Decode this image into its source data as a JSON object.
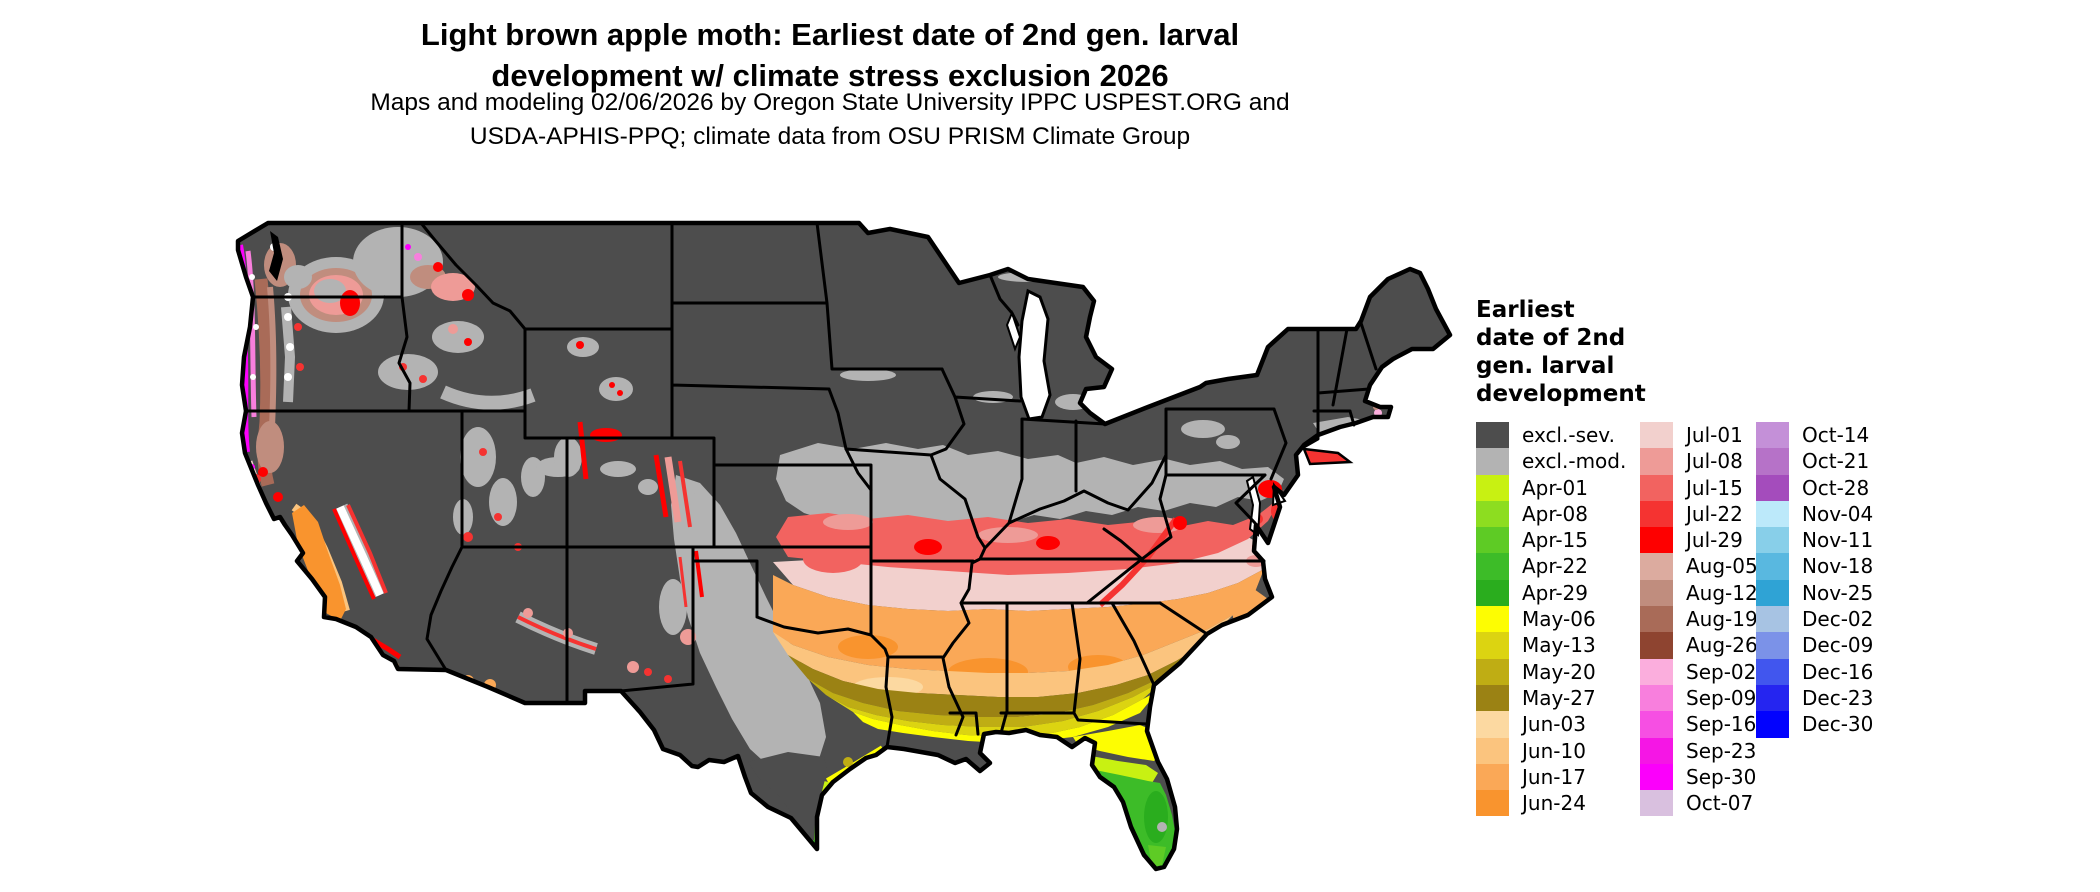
{
  "title": {
    "line1": "Light brown apple moth: Earliest date of 2nd gen. larval",
    "line2": "development w/ climate stress exclusion 2026"
  },
  "subtitle": {
    "line1": "Maps and modeling 02/06/2026 by Oregon State University IPPC USPEST.ORG and",
    "line2": "USDA-APHIS-PPQ; climate data from OSU PRISM Climate Group"
  },
  "map": {
    "region": "contiguous United States",
    "outline_color": "#000000",
    "water_color": "#ffffff",
    "border_stroke_width": 3
  },
  "legend": {
    "title_lines": [
      "Earliest",
      "date of 2nd",
      "gen. larval",
      "development"
    ],
    "columns": [
      [
        {
          "label": "excl.-sev.",
          "color": "#4d4d4d"
        },
        {
          "label": "excl.-mod.",
          "color": "#b3b3b3"
        },
        {
          "label": "Apr-01",
          "color": "#c8f112"
        },
        {
          "label": "Apr-08",
          "color": "#8ddd20"
        },
        {
          "label": "Apr-15",
          "color": "#5ecb25"
        },
        {
          "label": "Apr-22",
          "color": "#3dbc28"
        },
        {
          "label": "Apr-29",
          "color": "#2aad1e"
        },
        {
          "label": "May-06",
          "color": "#fdfd02"
        },
        {
          "label": "May-13",
          "color": "#dcd411"
        },
        {
          "label": "May-20",
          "color": "#bfad14"
        },
        {
          "label": "May-27",
          "color": "#9b8214"
        },
        {
          "label": "Jun-03",
          "color": "#fcd9a1"
        },
        {
          "label": "Jun-10",
          "color": "#fbc47e"
        },
        {
          "label": "Jun-17",
          "color": "#faa857"
        },
        {
          "label": "Jun-24",
          "color": "#f9942e"
        }
      ],
      [
        {
          "label": "Jul-01",
          "color": "#f2d0cd"
        },
        {
          "label": "Jul-08",
          "color": "#ee9b97"
        },
        {
          "label": "Jul-15",
          "color": "#f26360"
        },
        {
          "label": "Jul-22",
          "color": "#f53331"
        },
        {
          "label": "Jul-29",
          "color": "#fe0000"
        },
        {
          "label": "Aug-05",
          "color": "#dcab9f"
        },
        {
          "label": "Aug-12",
          "color": "#c08d7e"
        },
        {
          "label": "Aug-19",
          "color": "#a96b58"
        },
        {
          "label": "Aug-26",
          "color": "#8e4430"
        },
        {
          "label": "Sep-02",
          "color": "#fbaedd"
        },
        {
          "label": "Sep-09",
          "color": "#f87fdd"
        },
        {
          "label": "Sep-16",
          "color": "#f64fe3"
        },
        {
          "label": "Sep-23",
          "color": "#f516e5"
        },
        {
          "label": "Sep-30",
          "color": "#fb00fb"
        },
        {
          "label": "Oct-07",
          "color": "#d9c0df"
        }
      ],
      [
        {
          "label": "Oct-14",
          "color": "#c490d8"
        },
        {
          "label": "Oct-21",
          "color": "#b672c8"
        },
        {
          "label": "Oct-28",
          "color": "#a44cbc"
        },
        {
          "label": "Nov-04",
          "color": "#bce9fa"
        },
        {
          "label": "Nov-11",
          "color": "#88cfe9"
        },
        {
          "label": "Nov-18",
          "color": "#59b8e0"
        },
        {
          "label": "Nov-25",
          "color": "#2fa3d5"
        },
        {
          "label": "Dec-02",
          "color": "#a7c3e3"
        },
        {
          "label": "Dec-09",
          "color": "#7b92e8"
        },
        {
          "label": "Dec-16",
          "color": "#4156ee"
        },
        {
          "label": "Dec-23",
          "color": "#2525f0"
        },
        {
          "label": "Dec-30",
          "color": "#0202fe"
        }
      ]
    ]
  }
}
